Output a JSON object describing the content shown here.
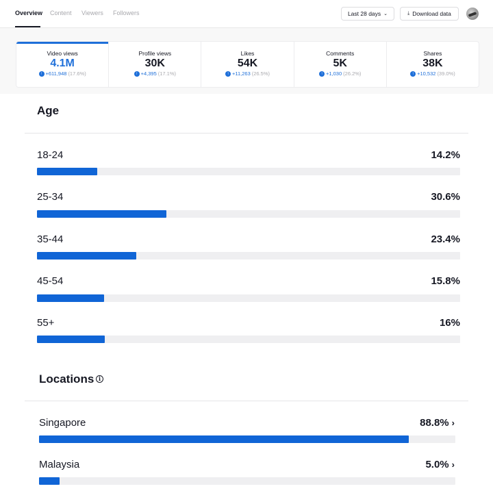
{
  "nav": {
    "tabs": [
      "Overview",
      "Content",
      "Viewers",
      "Followers"
    ],
    "date_range": "Last 28 days",
    "download_label": "Download data"
  },
  "stats": [
    {
      "label": "Video views",
      "value": "4.1M",
      "delta": "+611,948",
      "pct": "(17.6%)"
    },
    {
      "label": "Profile views",
      "value": "30K",
      "delta": "+4,395",
      "pct": "(17.1%)"
    },
    {
      "label": "Likes",
      "value": "54K",
      "delta": "+11,263",
      "pct": "(26.5%)"
    },
    {
      "label": "Comments",
      "value": "5K",
      "delta": "+1,030",
      "pct": "(26.2%)"
    },
    {
      "label": "Shares",
      "value": "38K",
      "delta": "+10,532",
      "pct": "(39.0%)"
    }
  ],
  "age": {
    "title": "Age",
    "rows": [
      {
        "label": "18-24",
        "value": "14.2%",
        "fraction": 0.142
      },
      {
        "label": "25-34",
        "value": "30.6%",
        "fraction": 0.306
      },
      {
        "label": "35-44",
        "value": "23.4%",
        "fraction": 0.234
      },
      {
        "label": "45-54",
        "value": "15.8%",
        "fraction": 0.158
      },
      {
        "label": "55+",
        "value": "16%",
        "fraction": 0.16
      }
    ]
  },
  "locations": {
    "title": "Locations",
    "rows": [
      {
        "label": "Singapore",
        "value": "88.8%",
        "fraction": 0.888
      },
      {
        "label": "Malaysia",
        "value": "5.0%",
        "fraction": 0.05
      }
    ]
  },
  "colors": {
    "accent": "#1065d6",
    "track": "#efeff1"
  },
  "icons": [
    "download-icon",
    "chevron-down-icon",
    "arrow-up-icon",
    "info-icon",
    "chevron-right-icon"
  ]
}
